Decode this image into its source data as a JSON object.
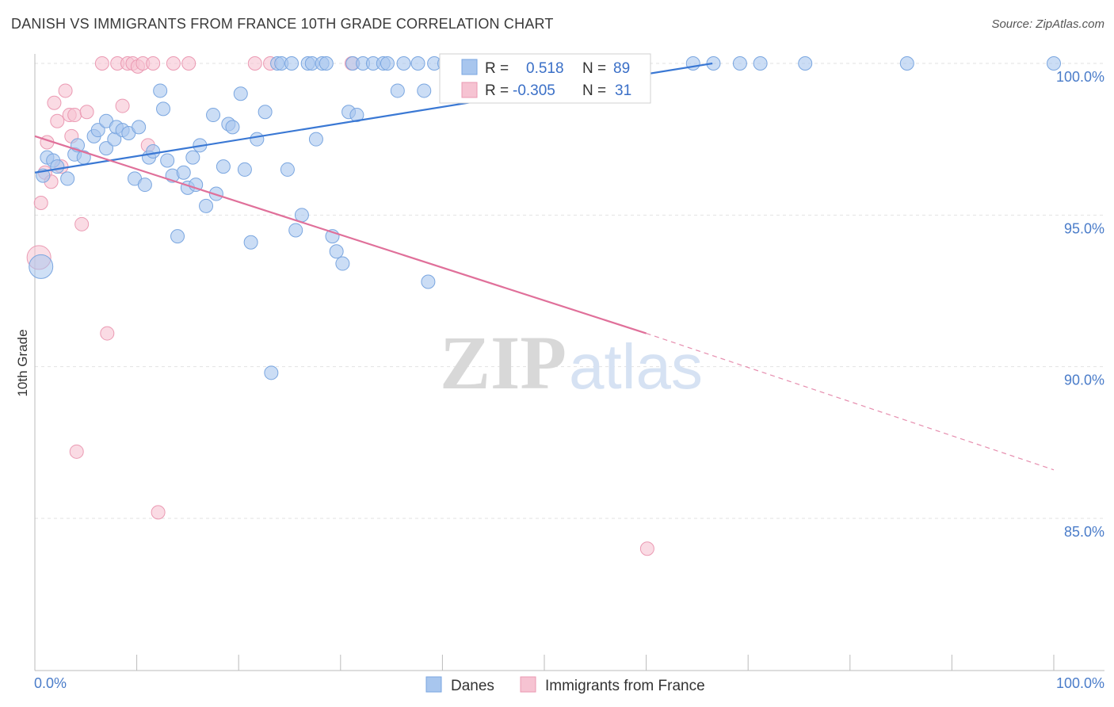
{
  "header": {
    "title": "DANISH VS IMMIGRANTS FROM FRANCE 10TH GRADE CORRELATION CHART",
    "source": "Source: ZipAtlas.com"
  },
  "watermark": {
    "zip": "ZIP",
    "atlas": "atlas"
  },
  "legend": {
    "r_label": "R =",
    "n_label": "N =",
    "rows": [
      {
        "r": "0.518",
        "n": "89",
        "color": "#a8c6ee",
        "stroke": "#7aa6e0"
      },
      {
        "r": "-0.305",
        "n": "31",
        "color": "#f6c3d2",
        "stroke": "#eb9ab3"
      }
    ]
  },
  "bottom_legend": {
    "items": [
      {
        "label": "Danes",
        "color": "#a8c6ee",
        "stroke": "#7aa6e0"
      },
      {
        "label": "Immigrants from France",
        "color": "#f6c3d2",
        "stroke": "#eb9ab3"
      }
    ]
  },
  "chart_data": {
    "type": "scatter",
    "title": "DANISH VS IMMIGRANTS FROM FRANCE 10TH GRADE CORRELATION CHART",
    "xlabel": "",
    "ylabel": "10th Grade",
    "xlim": [
      0,
      100
    ],
    "ylim": [
      80.5,
      100.5
    ],
    "x_tick_labels": [
      "0.0%",
      "100.0%"
    ],
    "y_ticks": [
      100,
      95,
      90,
      85
    ],
    "y_tick_labels": [
      "100.0%",
      "95.0%",
      "90.0%",
      "85.0%"
    ],
    "grid": true,
    "colors": {
      "danes": "#3a78d4",
      "france": "#e0709a"
    },
    "series": [
      {
        "name": "Danes",
        "points": [
          [
            0.8,
            96.3
          ],
          [
            1.2,
            96.9
          ],
          [
            1.8,
            96.8
          ],
          [
            2.2,
            96.6
          ],
          [
            3.2,
            96.2
          ],
          [
            3.9,
            97.0
          ],
          [
            4.2,
            97.3
          ],
          [
            4.8,
            96.9
          ],
          [
            5.8,
            97.6
          ],
          [
            6.2,
            97.8
          ],
          [
            7.0,
            97.2
          ],
          [
            7.0,
            98.1
          ],
          [
            7.8,
            97.5
          ],
          [
            8.0,
            97.9
          ],
          [
            8.6,
            97.8
          ],
          [
            9.2,
            97.7
          ],
          [
            9.8,
            96.2
          ],
          [
            10.2,
            97.9
          ],
          [
            10.8,
            96.0
          ],
          [
            11.2,
            96.9
          ],
          [
            11.6,
            97.1
          ],
          [
            12.3,
            99.1
          ],
          [
            12.6,
            98.5
          ],
          [
            13.0,
            96.8
          ],
          [
            13.5,
            96.3
          ],
          [
            14.0,
            94.3
          ],
          [
            14.6,
            96.4
          ],
          [
            15.0,
            95.9
          ],
          [
            15.5,
            96.9
          ],
          [
            15.8,
            96.0
          ],
          [
            16.2,
            97.3
          ],
          [
            16.8,
            95.3
          ],
          [
            17.5,
            98.3
          ],
          [
            17.8,
            95.7
          ],
          [
            18.5,
            96.6
          ],
          [
            19.0,
            98.0
          ],
          [
            19.4,
            97.9
          ],
          [
            20.2,
            99.0
          ],
          [
            20.6,
            96.5
          ],
          [
            21.2,
            94.1
          ],
          [
            21.8,
            97.5
          ],
          [
            22.6,
            98.4
          ],
          [
            23.2,
            89.8
          ],
          [
            23.8,
            100.0
          ],
          [
            24.2,
            100.0
          ],
          [
            24.8,
            96.5
          ],
          [
            25.2,
            100.0
          ],
          [
            25.6,
            94.5
          ],
          [
            26.2,
            95.0
          ],
          [
            26.8,
            100.0
          ],
          [
            27.2,
            100.0
          ],
          [
            27.6,
            97.5
          ],
          [
            28.2,
            100.0
          ],
          [
            28.6,
            100.0
          ],
          [
            29.2,
            94.3
          ],
          [
            29.6,
            93.8
          ],
          [
            30.2,
            93.4
          ],
          [
            30.8,
            98.4
          ],
          [
            31.2,
            100.0
          ],
          [
            31.6,
            98.3
          ],
          [
            32.2,
            100.0
          ],
          [
            33.2,
            100.0
          ],
          [
            34.2,
            100.0
          ],
          [
            34.6,
            100.0
          ],
          [
            35.6,
            99.1
          ],
          [
            36.2,
            100.0
          ],
          [
            37.6,
            100.0
          ],
          [
            38.2,
            99.1
          ],
          [
            38.6,
            92.8
          ],
          [
            39.2,
            100.0
          ],
          [
            40.2,
            100.0
          ],
          [
            41.2,
            100.0
          ],
          [
            42.2,
            100.0
          ],
          [
            43.2,
            100.0
          ],
          [
            44.6,
            100.0
          ],
          [
            45.6,
            100.0
          ],
          [
            46.6,
            100.0
          ],
          [
            47.6,
            100.0
          ],
          [
            48.6,
            100.0
          ],
          [
            49.6,
            100.0
          ],
          [
            51.6,
            100.0
          ],
          [
            53.6,
            100.0
          ],
          [
            55.6,
            100.0
          ],
          [
            58.6,
            100.0
          ],
          [
            64.6,
            100.0
          ],
          [
            66.6,
            100.0
          ],
          [
            69.2,
            100.0
          ],
          [
            71.2,
            100.0
          ],
          [
            75.6,
            100.0
          ],
          [
            85.6,
            100.0
          ],
          [
            100.0,
            100.0
          ]
        ],
        "big_point": [
          0.6,
          93.3
        ],
        "trend": {
          "x0": 0,
          "y0": 96.4,
          "x1": 66.5,
          "y1": 100.0
        }
      },
      {
        "name": "Immigrants from France",
        "points": [
          [
            0.6,
            95.4
          ],
          [
            1.0,
            96.4
          ],
          [
            1.2,
            97.4
          ],
          [
            1.6,
            96.1
          ],
          [
            1.9,
            98.7
          ],
          [
            2.2,
            98.1
          ],
          [
            2.6,
            96.6
          ],
          [
            3.0,
            99.1
          ],
          [
            3.4,
            98.3
          ],
          [
            3.6,
            97.6
          ],
          [
            3.9,
            98.3
          ],
          [
            4.1,
            87.2
          ],
          [
            4.6,
            94.7
          ],
          [
            5.1,
            98.4
          ],
          [
            6.6,
            100.0
          ],
          [
            7.1,
            91.1
          ],
          [
            8.1,
            100.0
          ],
          [
            8.6,
            98.6
          ],
          [
            9.1,
            100.0
          ],
          [
            9.6,
            100.0
          ],
          [
            10.1,
            99.9
          ],
          [
            10.6,
            100.0
          ],
          [
            11.1,
            97.3
          ],
          [
            11.6,
            100.0
          ],
          [
            12.1,
            85.2
          ],
          [
            13.6,
            100.0
          ],
          [
            15.1,
            100.0
          ],
          [
            21.6,
            100.0
          ],
          [
            23.1,
            100.0
          ],
          [
            31.1,
            100.0
          ],
          [
            60.1,
            84.0
          ]
        ],
        "big_point": [
          0.4,
          93.6
        ],
        "trend": {
          "x0": 0,
          "y0": 97.6,
          "x1": 60.0,
          "y1": 91.1,
          "dash_x1": 100,
          "dash_y1": 86.6
        }
      }
    ]
  }
}
